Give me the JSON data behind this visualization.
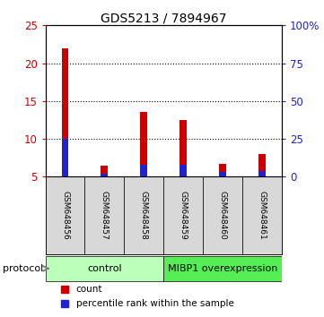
{
  "title": "GDS5213 / 7894967",
  "samples": [
    "GSM648456",
    "GSM648457",
    "GSM648458",
    "GSM648459",
    "GSM648460",
    "GSM648461"
  ],
  "count_values": [
    22.0,
    6.5,
    13.5,
    12.5,
    6.7,
    8.0
  ],
  "percentile_values": [
    25.0,
    2.0,
    8.0,
    8.0,
    3.0,
    4.0
  ],
  "ylim_left": [
    5,
    25
  ],
  "ylim_right": [
    0,
    100
  ],
  "yticks_left": [
    5,
    10,
    15,
    20,
    25
  ],
  "yticks_right": [
    0,
    25,
    50,
    75,
    100
  ],
  "ytick_labels_right": [
    "0",
    "25",
    "50",
    "75",
    "100%"
  ],
  "bar_width": 0.18,
  "bar_color_red": "#cc0000",
  "bar_color_blue": "#2222cc",
  "group_labels": [
    "control",
    "MIBP1 overexpression"
  ],
  "group_colors_light": "#bbffbb",
  "group_colors_dark": "#55ee55",
  "protocol_label": "protocol",
  "legend_items": [
    "count",
    "percentile rank within the sample"
  ],
  "legend_colors": [
    "#cc0000",
    "#2222cc"
  ],
  "grid_color": "black",
  "bg_color": "#d8d8d8",
  "bar_bottom": 5.0,
  "x_positions": [
    0,
    1,
    2,
    3,
    4,
    5
  ],
  "xlim": [
    -0.5,
    5.5
  ]
}
